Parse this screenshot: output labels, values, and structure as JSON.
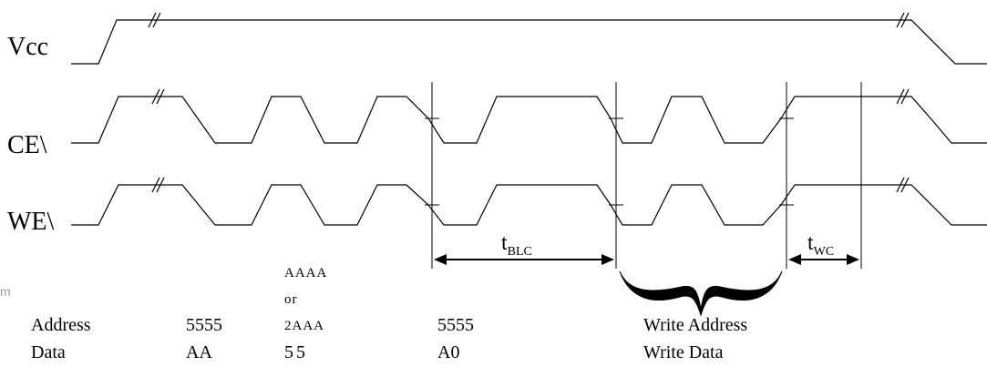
{
  "signals": {
    "vcc": "Vcc",
    "ce": "CE\\",
    "we": "WE\\"
  },
  "timing": {
    "t_blc": {
      "main": "t",
      "sub": "BLC"
    },
    "t_wc": {
      "main": "t",
      "sub": "WC"
    }
  },
  "stray_text": "m",
  "table": {
    "row_labels": {
      "address": "Address",
      "data": "Data"
    },
    "col1": {
      "address": "5555",
      "data": "AA"
    },
    "col2": {
      "address_line1": "AAAA",
      "address_line2": "or",
      "address_line3": "2AAA",
      "data": "55"
    },
    "col3": {
      "address": "5555",
      "data": "A0"
    },
    "col4": {
      "address": "Write Address",
      "data": "Write Data"
    }
  }
}
